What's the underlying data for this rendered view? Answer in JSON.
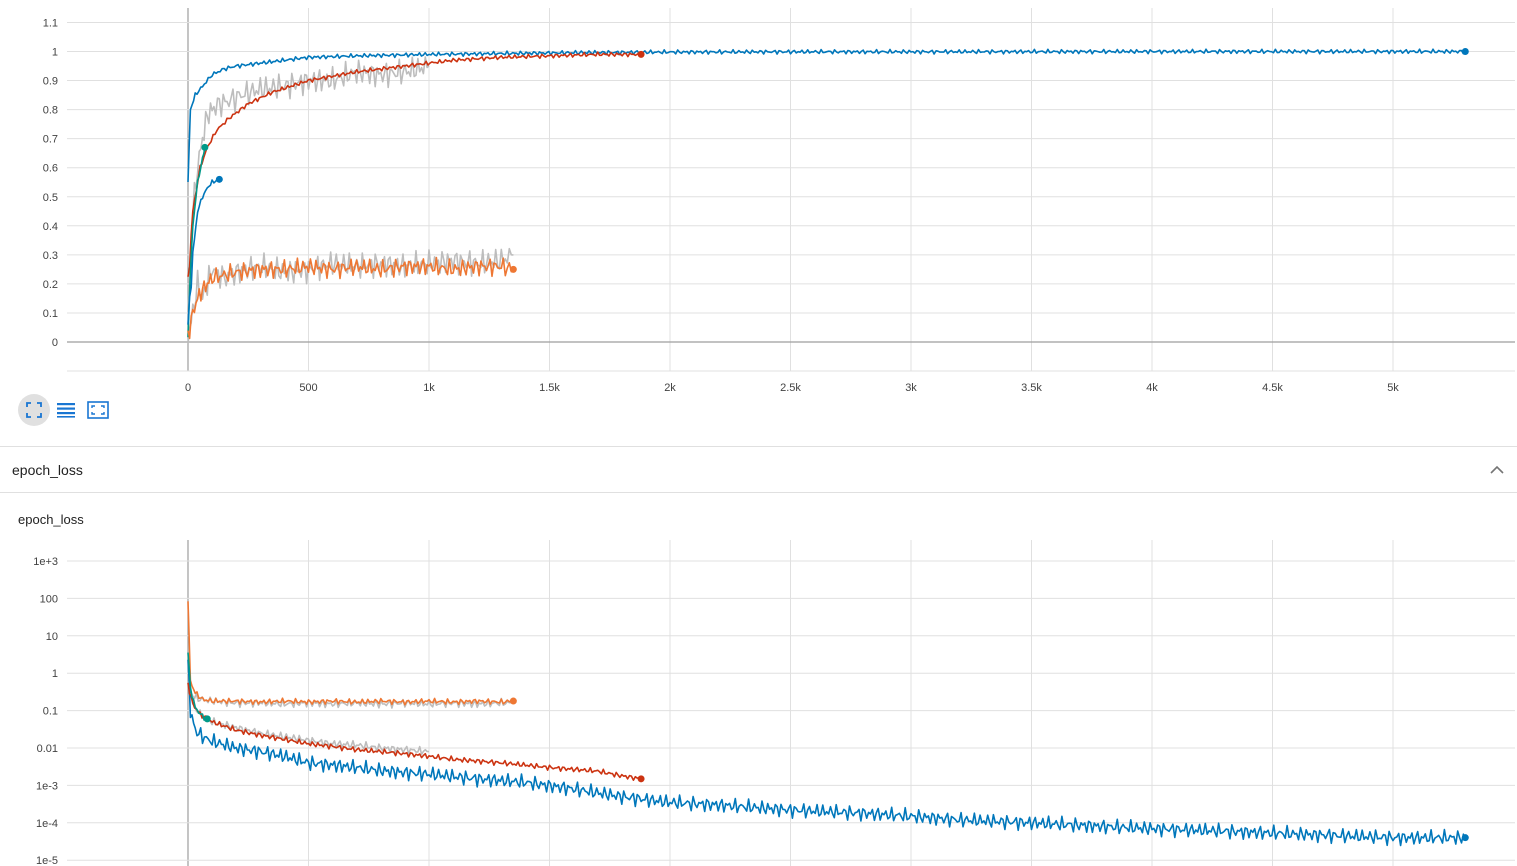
{
  "toolbar": {
    "buttons": [
      {
        "icon": "fit-domain-icon",
        "active": true
      },
      {
        "icon": "data-selection-icon",
        "active": false
      },
      {
        "icon": "toggle-y-axis-icon",
        "active": false
      }
    ]
  },
  "section": {
    "title": "epoch_loss",
    "collapse_icon": "chevron-up-icon"
  },
  "card": {
    "title": "epoch_loss"
  },
  "chart_data": [
    {
      "type": "line",
      "title": "",
      "xlabel": "",
      "ylabel": "",
      "xlim": [
        -500,
        5500
      ],
      "ylim": [
        -0.1,
        1.1
      ],
      "x_tick_labels": [
        "0",
        "500",
        "1k",
        "1.5k",
        "2k",
        "2.5k",
        "3k",
        "3.5k",
        "4k",
        "4.5k",
        "5k"
      ],
      "x_ticks": [
        0,
        500,
        1000,
        1500,
        2000,
        2500,
        3000,
        3500,
        4000,
        4500,
        5000
      ],
      "y_tick_labels": [
        "0",
        "0.1",
        "0.2",
        "0.3",
        "0.4",
        "0.5",
        "0.6",
        "0.7",
        "0.8",
        "0.9",
        "1",
        "1.1"
      ],
      "y_ticks": [
        0,
        0.1,
        0.2,
        0.3,
        0.4,
        0.5,
        0.6,
        0.7,
        0.8,
        0.9,
        1,
        1.1
      ],
      "grid": true,
      "series": [
        {
          "color": "#bdbdbd",
          "x": [
            0,
            20,
            40,
            60,
            80,
            100,
            130,
            170,
            220,
            300,
            400,
            500,
            600,
            700,
            800,
            900,
            1000
          ],
          "y": [
            0.1,
            0.45,
            0.6,
            0.7,
            0.78,
            0.8,
            0.82,
            0.83,
            0.85,
            0.87,
            0.88,
            0.9,
            0.9,
            0.93,
            0.92,
            0.93,
            0.95
          ]
        },
        {
          "color": "#bdbdbd",
          "x": [
            0,
            20,
            40,
            60,
            80,
            100,
            150,
            200,
            300,
            400,
            500,
            600,
            700,
            800,
            900,
            1000,
            1100,
            1200,
            1300,
            1350
          ],
          "y": [
            0.02,
            0.1,
            0.2,
            0.15,
            0.2,
            0.25,
            0.22,
            0.24,
            0.26,
            0.24,
            0.25,
            0.27,
            0.26,
            0.27,
            0.26,
            0.27,
            0.28,
            0.27,
            0.28,
            0.3
          ]
        },
        {
          "color": "#0077bb",
          "x": [
            0,
            10,
            30,
            60,
            100,
            150,
            200,
            300,
            400,
            500,
            700,
            1000,
            1300,
            1600,
            2000,
            2500,
            3000,
            4000,
            5000,
            5300
          ],
          "y": [
            0.55,
            0.8,
            0.85,
            0.88,
            0.92,
            0.94,
            0.95,
            0.96,
            0.97,
            0.98,
            0.985,
            0.99,
            0.993,
            0.996,
            0.998,
            0.999,
            0.999,
            1.0,
            1.0,
            1.0
          ]
        },
        {
          "color": "#cc3311",
          "x": [
            0,
            20,
            50,
            80,
            120,
            170,
            250,
            350,
            500,
            700,
            900,
            1100,
            1300,
            1500,
            1700,
            1880
          ],
          "y": [
            0.2,
            0.45,
            0.6,
            0.67,
            0.73,
            0.77,
            0.82,
            0.86,
            0.9,
            0.93,
            0.95,
            0.97,
            0.98,
            0.985,
            0.99,
            0.99
          ]
        },
        {
          "color": "#009988",
          "x": [
            0,
            20,
            40,
            60,
            70
          ],
          "y": [
            0.05,
            0.4,
            0.55,
            0.63,
            0.67
          ]
        },
        {
          "color": "#0077bb",
          "x": [
            0,
            20,
            40,
            60,
            80,
            100,
            130
          ],
          "y": [
            0.05,
            0.3,
            0.45,
            0.5,
            0.53,
            0.55,
            0.56
          ]
        },
        {
          "color": "#ee7733",
          "x": [
            0,
            20,
            40,
            60,
            80,
            100,
            150,
            200,
            300,
            400,
            500,
            600,
            700,
            800,
            900,
            1000,
            1100,
            1200,
            1300,
            1350
          ],
          "y": [
            0.02,
            0.1,
            0.15,
            0.18,
            0.2,
            0.22,
            0.23,
            0.24,
            0.25,
            0.25,
            0.26,
            0.25,
            0.26,
            0.25,
            0.26,
            0.26,
            0.25,
            0.26,
            0.26,
            0.25
          ]
        }
      ]
    },
    {
      "type": "line",
      "title": "epoch_loss",
      "xlabel": "",
      "ylabel": "",
      "yscale": "log",
      "xlim": [
        -500,
        5500
      ],
      "ylim": [
        1e-05,
        2000
      ],
      "x_ticks": [
        0,
        500,
        1000,
        1500,
        2000,
        2500,
        3000,
        3500,
        4000,
        4500,
        5000
      ],
      "y_tick_labels": [
        "1e+3",
        "100",
        "10",
        "1",
        "0.1",
        "0.01",
        "1e-3",
        "1e-4",
        "1e-5"
      ],
      "y_ticks": [
        1000,
        100,
        10,
        1,
        0.1,
        0.01,
        0.001,
        0.0001,
        1e-05
      ],
      "grid": true,
      "series": [
        {
          "color": "#bdbdbd",
          "x": [
            0,
            20,
            50,
            100,
            200,
            300,
            400,
            500,
            600,
            700,
            800,
            900,
            1000,
            1100,
            1200,
            1300,
            1350
          ],
          "y": [
            0.5,
            0.25,
            0.2,
            0.18,
            0.16,
            0.16,
            0.15,
            0.16,
            0.15,
            0.16,
            0.15,
            0.16,
            0.15,
            0.16,
            0.15,
            0.16,
            0.16
          ]
        },
        {
          "color": "#bdbdbd",
          "x": [
            0,
            20,
            50,
            100,
            200,
            300,
            400,
            500,
            600,
            700,
            800,
            900,
            1000
          ],
          "y": [
            0.5,
            0.15,
            0.08,
            0.05,
            0.035,
            0.025,
            0.02,
            0.016,
            0.013,
            0.012,
            0.01,
            0.009,
            0.008
          ]
        },
        {
          "color": "#ee7733",
          "x": [
            0,
            10,
            30,
            60,
            100,
            200,
            300,
            400,
            500,
            600,
            700,
            800,
            900,
            1000,
            1100,
            1200,
            1300,
            1350
          ],
          "y": [
            100,
            0.6,
            0.3,
            0.2,
            0.18,
            0.18,
            0.17,
            0.18,
            0.17,
            0.18,
            0.17,
            0.18,
            0.17,
            0.18,
            0.17,
            0.18,
            0.17,
            0.18
          ]
        },
        {
          "color": "#0077bb",
          "x": [
            0,
            10,
            30,
            60,
            100,
            200,
            300,
            400,
            500,
            600,
            700,
            800,
            900,
            1000,
            1200,
            1400,
            1600,
            1800,
            2000,
            2200,
            2500,
            2800,
            3000,
            3200,
            3500,
            3800,
            4000,
            4300,
            4600,
            5000,
            5300
          ],
          "y": [
            2,
            0.1,
            0.03,
            0.02,
            0.015,
            0.01,
            0.008,
            0.006,
            0.004,
            0.0035,
            0.003,
            0.0025,
            0.0022,
            0.002,
            0.0015,
            0.0012,
            0.0008,
            0.0005,
            0.00035,
            0.0003,
            0.00022,
            0.00018,
            0.00015,
            0.00012,
            0.0001,
            8e-05,
            7e-05,
            6e-05,
            5e-05,
            4e-05,
            4e-05
          ]
        },
        {
          "color": "#cc3311",
          "x": [
            0,
            20,
            50,
            100,
            200,
            300,
            400,
            500,
            600,
            700,
            800,
            900,
            1000,
            1100,
            1200,
            1300,
            1400,
            1500,
            1600,
            1700,
            1800,
            1880
          ],
          "y": [
            0.5,
            0.15,
            0.08,
            0.05,
            0.03,
            0.022,
            0.017,
            0.013,
            0.011,
            0.009,
            0.008,
            0.007,
            0.006,
            0.005,
            0.0045,
            0.004,
            0.0035,
            0.003,
            0.0027,
            0.0024,
            0.0018,
            0.0015
          ]
        },
        {
          "color": "#009988",
          "x": [
            0,
            10,
            30,
            60,
            80
          ],
          "y": [
            4,
            0.4,
            0.12,
            0.07,
            0.06
          ]
        }
      ]
    }
  ]
}
